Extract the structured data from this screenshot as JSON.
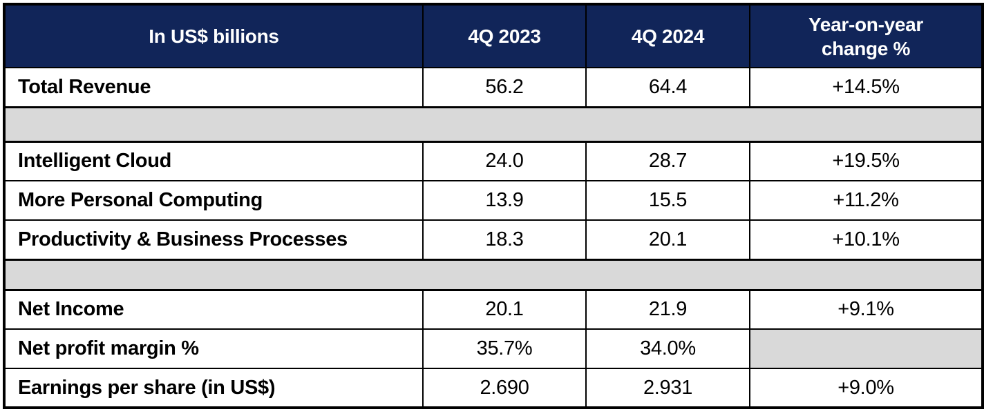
{
  "colors": {
    "header_bg": "#112559",
    "header_text": "#ffffff",
    "spacer_bg": "#d9d9d9",
    "border": "#000000",
    "body_text": "#000000"
  },
  "table": {
    "header": {
      "metric": "In US$ billions",
      "q4_2023": "4Q 2023",
      "q4_2024": "4Q 2024",
      "yoy_change": "Year-on-year change %"
    },
    "rows": [
      {
        "label": "Total Revenue",
        "q4_2023": "56.2",
        "q4_2024": "64.4",
        "yoy_change": "+14.5%"
      },
      {
        "label": "Intelligent Cloud",
        "q4_2023": "24.0",
        "q4_2024": "28.7",
        "yoy_change": "+19.5%"
      },
      {
        "label": "More Personal Computing",
        "q4_2023": "13.9",
        "q4_2024": "15.5",
        "yoy_change": "+11.2%"
      },
      {
        "label": "Productivity & Business Processes",
        "q4_2023": "18.3",
        "q4_2024": "20.1",
        "yoy_change": "+10.1%"
      },
      {
        "label": "Net Income",
        "q4_2023": "20.1",
        "q4_2024": "21.9",
        "yoy_change": "+9.1%"
      },
      {
        "label": "Net profit margin %",
        "q4_2023": "35.7%",
        "q4_2024": "34.0%",
        "yoy_change": ""
      },
      {
        "label": "Earnings per share (in US$)",
        "q4_2023": "2.690",
        "q4_2024": "2.931",
        "yoy_change": "+9.0%"
      }
    ]
  },
  "chart_data": {
    "type": "table",
    "title": "In US$ billions",
    "columns": [
      "In US$ billions",
      "4Q 2023",
      "4Q 2024",
      "Year-on-year change %"
    ],
    "rows": [
      {
        "metric": "Total Revenue",
        "q4_2023": 56.2,
        "q4_2024": 64.4,
        "yoy_change_pct": 14.5
      },
      {
        "metric": "Intelligent Cloud",
        "q4_2023": 24.0,
        "q4_2024": 28.7,
        "yoy_change_pct": 19.5
      },
      {
        "metric": "More Personal Computing",
        "q4_2023": 13.9,
        "q4_2024": 15.5,
        "yoy_change_pct": 11.2
      },
      {
        "metric": "Productivity & Business Processes",
        "q4_2023": 18.3,
        "q4_2024": 20.1,
        "yoy_change_pct": 10.1
      },
      {
        "metric": "Net Income",
        "q4_2023": 20.1,
        "q4_2024": 21.9,
        "yoy_change_pct": 9.1
      },
      {
        "metric": "Net profit margin %",
        "q4_2023": "35.7%",
        "q4_2024": "34.0%",
        "yoy_change_pct": null
      },
      {
        "metric": "Earnings per share (in US$)",
        "q4_2023": 2.69,
        "q4_2024": 2.931,
        "yoy_change_pct": 9.0
      }
    ],
    "layout": {
      "spacer_rows_after": [
        "Total Revenue",
        "Productivity & Business Processes"
      ],
      "grid": "black solid borders, full outer frame",
      "header_style": "navy background, white bold text"
    }
  }
}
